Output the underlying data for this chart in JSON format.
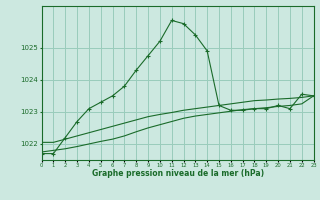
{
  "xlabel": "Graphe pression niveau de la mer (hPa)",
  "bg_color": "#cce8e0",
  "grid_color": "#99ccbb",
  "line_color": "#1a6b2a",
  "hours": [
    0,
    1,
    2,
    3,
    4,
    5,
    6,
    7,
    8,
    9,
    10,
    11,
    12,
    13,
    14,
    15,
    16,
    17,
    18,
    19,
    20,
    21,
    22,
    23
  ],
  "series1": [
    1021.7,
    1021.7,
    1022.2,
    1022.7,
    1023.1,
    1023.3,
    1023.5,
    1023.8,
    1024.3,
    1024.75,
    1025.2,
    1025.85,
    1025.75,
    1025.4,
    1024.9,
    1023.2,
    1023.05,
    1023.05,
    1023.1,
    1023.1,
    1023.2,
    1023.1,
    1023.55,
    1023.5
  ],
  "series2": [
    1022.05,
    1022.05,
    1022.15,
    1022.25,
    1022.35,
    1022.45,
    1022.55,
    1022.65,
    1022.75,
    1022.85,
    1022.92,
    1022.98,
    1023.05,
    1023.1,
    1023.15,
    1023.2,
    1023.25,
    1023.3,
    1023.35,
    1023.37,
    1023.4,
    1023.42,
    1023.45,
    1023.5
  ],
  "series3": [
    1021.75,
    1021.8,
    1021.85,
    1021.92,
    1022.0,
    1022.08,
    1022.15,
    1022.25,
    1022.38,
    1022.5,
    1022.6,
    1022.7,
    1022.8,
    1022.87,
    1022.92,
    1022.97,
    1023.02,
    1023.07,
    1023.1,
    1023.13,
    1023.17,
    1023.2,
    1023.25,
    1023.5
  ],
  "ylim": [
    1021.5,
    1026.3
  ],
  "yticks": [
    1022,
    1023,
    1024,
    1025
  ],
  "xlim": [
    0,
    23
  ]
}
